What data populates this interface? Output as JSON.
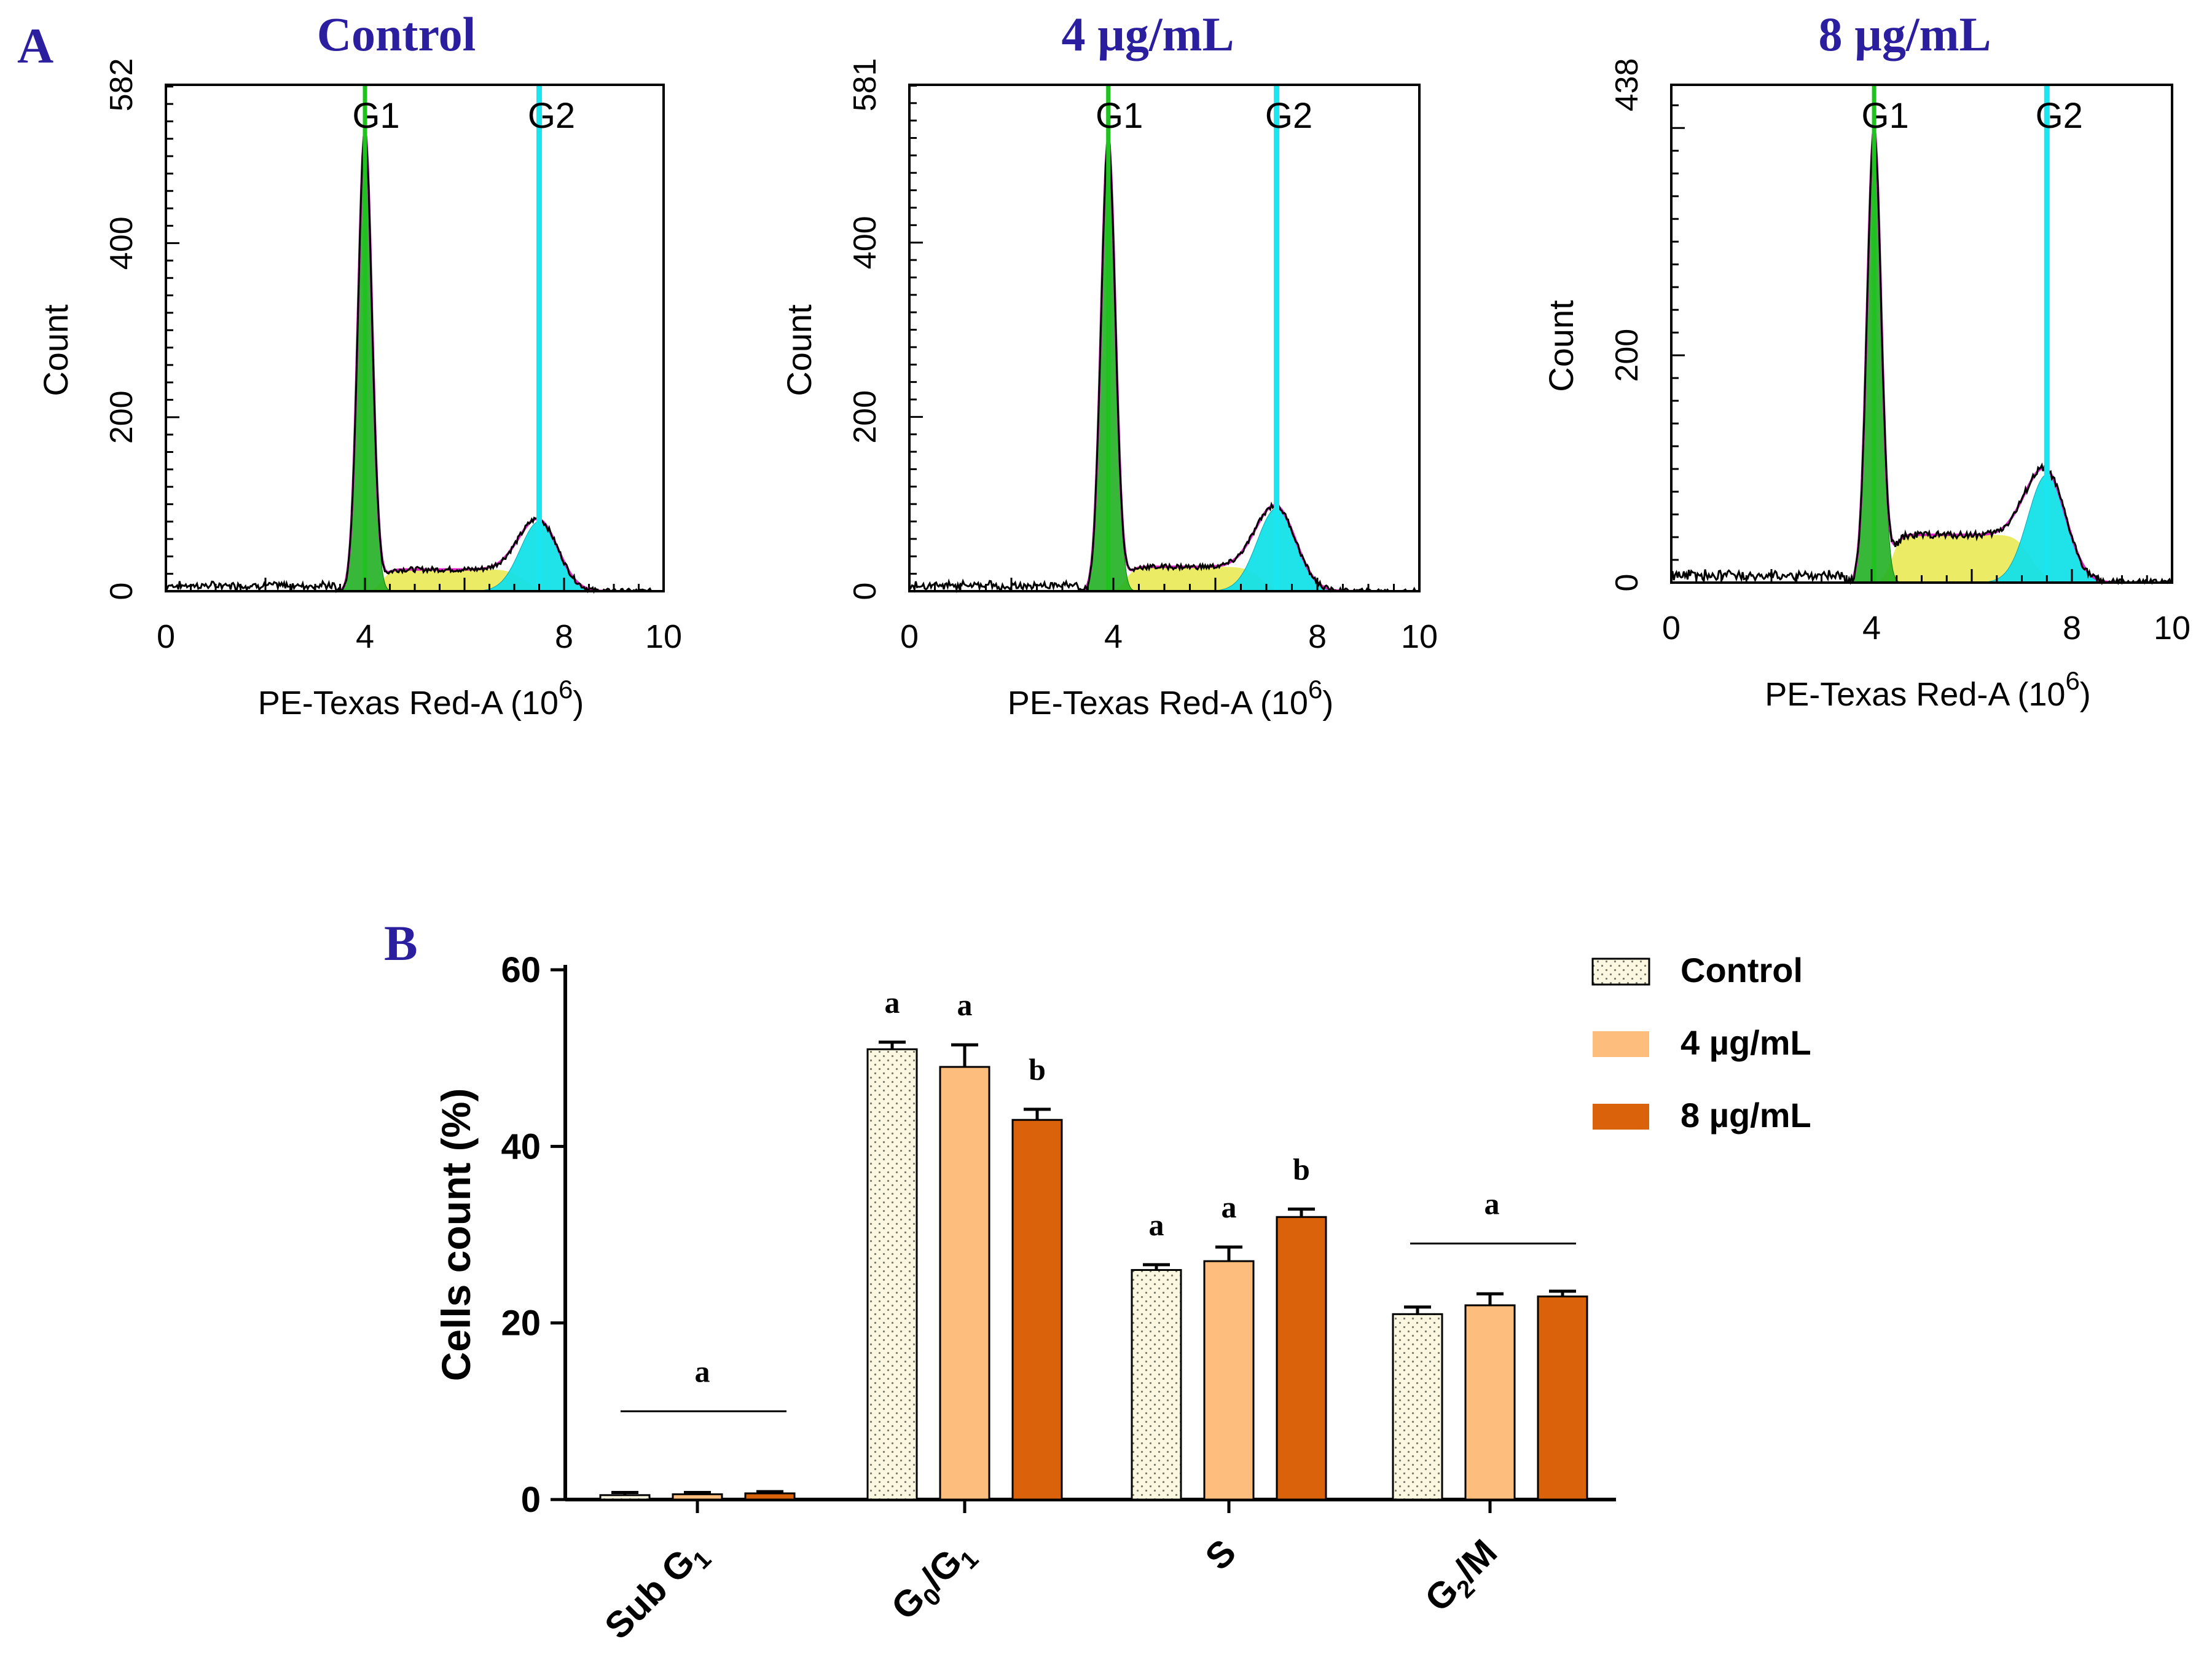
{
  "panel_a": {
    "label": "A",
    "xlabel": "PE-Texas Red-A",
    "xunit_base": "(10",
    "xunit_exp": "6",
    "xunit_close": ")",
    "ylabel": "Count",
    "gate_labels": [
      "G1",
      "G2"
    ],
    "colors": {
      "title": "#2b1fa0",
      "g1_line": "#1fc21f",
      "g1_fill": "#22b022",
      "g2_line": "#19e6ee",
      "g2_fill": "#14e0e8",
      "s_fill": "#e8e84a",
      "fit_line": "#e020c8",
      "data_line": "#000000"
    }
  },
  "panel_b": {
    "label": "B",
    "legend": [
      {
        "label": "Control",
        "color": "#fbf7e0",
        "pattern": "dots"
      },
      {
        "label": "4 µg/mL",
        "color": "#fdbd7c",
        "pattern": "solid"
      },
      {
        "label": "8 µg/mL",
        "color": "#d9620a",
        "pattern": "solid"
      }
    ],
    "colors": {
      "label": "#2b1fa0"
    }
  },
  "chart_data": [
    {
      "type": "histogram",
      "title": "Control",
      "xlabel": "PE-Texas Red-A (10^6)",
      "ylabel": "Count",
      "xlim": [
        0,
        10
      ],
      "ylim": [
        0,
        582
      ],
      "xticks": [
        "0",
        "4",
        "8",
        "10"
      ],
      "yticks": [
        "0",
        "200",
        "400",
        "582"
      ],
      "g1_position": 4.0,
      "g2_position": 7.5,
      "g1_peak": 530,
      "g2_peak": 80,
      "s_plateau": 25
    },
    {
      "type": "histogram",
      "title": "4 µg/mL",
      "xlabel": "PE-Texas Red-A (10^6)",
      "ylabel": "Count",
      "xlim": [
        0,
        10
      ],
      "ylim": [
        0,
        581
      ],
      "xticks": [
        "0",
        "4",
        "8",
        "10"
      ],
      "yticks": [
        "0",
        "200",
        "400",
        "581"
      ],
      "g1_position": 3.9,
      "g2_position": 7.2,
      "g1_peak": 520,
      "g2_peak": 95,
      "s_plateau": 28
    },
    {
      "type": "histogram",
      "title": "8 µg/mL",
      "xlabel": "PE-Texas Red-A (10^6)",
      "ylabel": "Count",
      "xlim": [
        0,
        10
      ],
      "ylim": [
        0,
        438
      ],
      "xticks": [
        "0",
        "4",
        "8",
        "10"
      ],
      "yticks": [
        "0",
        "200",
        "438"
      ],
      "g1_position": 4.05,
      "g2_position": 7.5,
      "g1_peak": 400,
      "g2_peak": 95,
      "s_plateau": 42
    },
    {
      "type": "bar",
      "categories": [
        "Sub G1",
        "G0/G1",
        "S",
        "G2/M"
      ],
      "series": [
        {
          "name": "Control",
          "values": [
            0.5,
            51,
            26,
            21
          ],
          "errors": [
            0.3,
            0.8,
            0.6,
            0.8
          ]
        },
        {
          "name": "4 µg/mL",
          "values": [
            0.6,
            49,
            27,
            22
          ],
          "errors": [
            0.2,
            2.5,
            1.6,
            1.3
          ]
        },
        {
          "name": "8 µg/mL",
          "values": [
            0.7,
            43,
            32,
            23
          ],
          "errors": [
            0.2,
            1.2,
            0.9,
            0.6
          ]
        }
      ],
      "ylabel": "Cells count (%)",
      "ylim": [
        0,
        60
      ],
      "yticks": [
        "0",
        "20",
        "40",
        "60"
      ],
      "significance": [
        {
          "group": 0,
          "label": "a",
          "bracket": true
        },
        {
          "group": 1,
          "labels": [
            "a",
            "a",
            "b"
          ]
        },
        {
          "group": 2,
          "labels": [
            "a",
            "a",
            "b"
          ]
        },
        {
          "group": 3,
          "label": "a",
          "bracket": true
        }
      ]
    }
  ]
}
